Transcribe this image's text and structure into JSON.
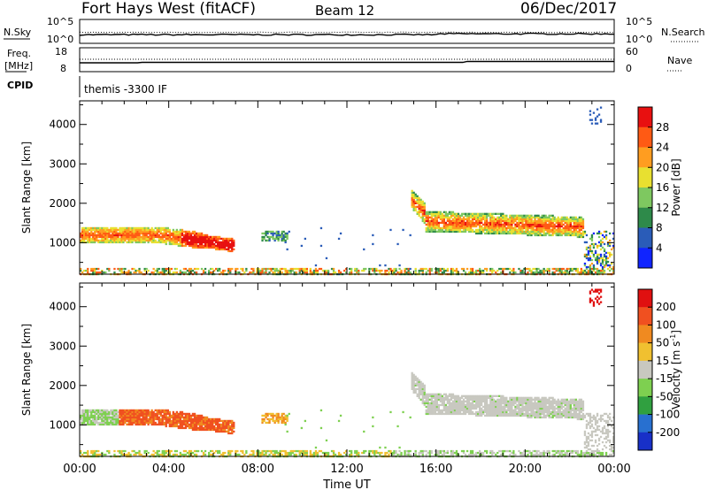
{
  "header": {
    "title": "Fort Hays West (fitACF)",
    "beam": "Beam 12",
    "date": "06/Dec/2017"
  },
  "top_panels": {
    "nsky_label": "N.Sky",
    "nsky_ticks": [
      "10^5",
      "10^0"
    ],
    "nsearch_label": "N.Search",
    "nsearch_ticks": [
      "10^5",
      "10^0"
    ],
    "freq_label": "Freq.",
    "freq_unit": "[MHz]",
    "freq_ticks": [
      "18",
      "8"
    ],
    "nave_label": "Nave",
    "nave_ticks": [
      "60",
      "0"
    ],
    "cpid_label": "CPID",
    "cpid_text": "themis -3300 IF"
  },
  "chart_data": [
    {
      "type": "heatmap",
      "name": "power",
      "ylabel": "Slant Range [km]",
      "yticks": [
        "4000",
        "3000",
        "2000",
        "1000"
      ],
      "ylim": [
        200,
        4600
      ],
      "xlim": [
        0,
        24
      ],
      "colorbar_label": "Power [dB]",
      "colorbar_ticks": [
        "28",
        "24",
        "20",
        "16",
        "12",
        "8",
        "4"
      ],
      "colors": [
        "#1024ff",
        "#2a5cb8",
        "#2e8a4a",
        "#7ec860",
        "#e8e030",
        "#ff9d20",
        "#ff5a14",
        "#e81010"
      ]
    },
    {
      "type": "heatmap",
      "name": "velocity",
      "ylabel": "Slant Range [km]",
      "yticks": [
        "4000",
        "3000",
        "2000",
        "1000"
      ],
      "ylim": [
        200,
        4600
      ],
      "xlim": [
        0,
        24
      ],
      "colorbar_label": "Velocity [m s",
      "colorbar_label_sup": "-1",
      "colorbar_label_end": "]",
      "colorbar_ticks": [
        "200",
        "100",
        "50",
        "15",
        "-15",
        "-50",
        "-100",
        "-200"
      ],
      "colors": [
        "#1830c8",
        "#2870d0",
        "#30a040",
        "#7ed050",
        "#c8c8c0",
        "#f0c030",
        "#f08a20",
        "#f05020",
        "#e01010"
      ]
    }
  ],
  "xaxis": {
    "ticks": [
      "00:00",
      "04:00",
      "08:00",
      "12:00",
      "16:00",
      "20:00",
      "00:00"
    ],
    "label": "Time UT"
  }
}
